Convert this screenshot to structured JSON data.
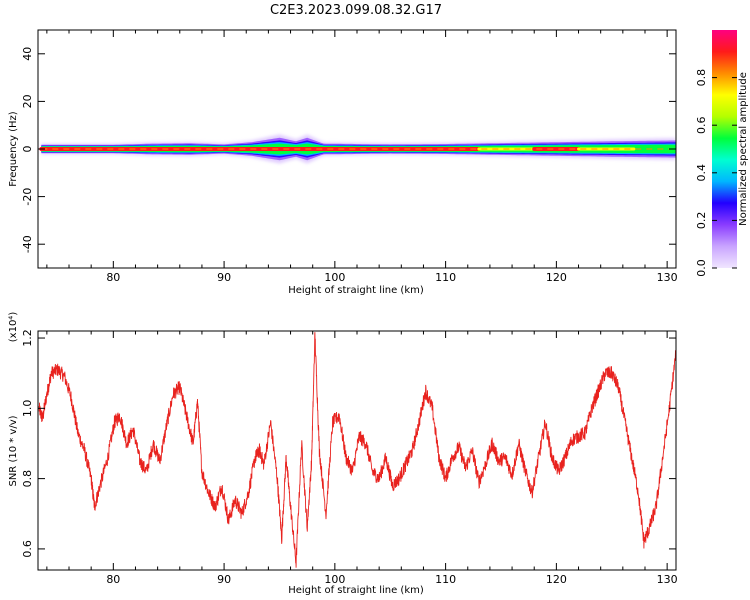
{
  "title": "C2E3.2023.099.08.32.G17",
  "colors": {
    "snr_line": "#e8221e",
    "axis": "#000000",
    "colormap": [
      "#f0e6ff",
      "#c9a4ff",
      "#8a3cff",
      "#2200ff",
      "#00b7ff",
      "#00ffd0",
      "#00ff3c",
      "#b4ff00",
      "#ffff00",
      "#ff8c00",
      "#ff1a1a",
      "#ff0080"
    ]
  },
  "chart_data": [
    {
      "type": "heatmap",
      "xlabel": "Height of straight line (km)",
      "ylabel": "Frequency (Hz)",
      "xlim": [
        73.2,
        130.8
      ],
      "ylim": [
        -50,
        50
      ],
      "xticks": [
        80,
        90,
        100,
        110,
        120,
        130
      ],
      "yticks": [
        -40,
        -20,
        0,
        20,
        40
      ],
      "ytick_labels": [
        "-40",
        "-20",
        "0",
        "20",
        "40"
      ],
      "colorbar": {
        "label": "Normalized spectral amplitude",
        "range": [
          0,
          1
        ],
        "ticks": [
          0.0,
          0.2,
          0.4,
          0.6,
          0.8
        ],
        "tick_labels": [
          "0.0",
          "0.2",
          "0.4",
          "0.6",
          "0.8"
        ]
      },
      "band_center_hz": 0,
      "band_halfwidth_hz": [
        [
          73.5,
          1.6
        ],
        [
          80,
          1.6
        ],
        [
          83.5,
          2.2
        ],
        [
          87,
          2.4
        ],
        [
          90,
          1.8
        ],
        [
          92.5,
          3.0
        ],
        [
          95,
          5.5
        ],
        [
          96.5,
          3.5
        ],
        [
          97.5,
          5.5
        ],
        [
          99,
          2.2
        ],
        [
          105,
          1.8
        ],
        [
          110,
          2.0
        ],
        [
          115,
          2.5
        ],
        [
          120,
          3.0
        ],
        [
          125,
          3.5
        ],
        [
          130.8,
          4.0
        ]
      ],
      "ridge_peaks_km": [
        73.5,
        80,
        86,
        89,
        93,
        96,
        99,
        103,
        108,
        113,
        118,
        122,
        127
      ]
    },
    {
      "type": "line",
      "xlabel": "Height of straight line (km)",
      "ylabel": "SNR (10 * v/v)",
      "y_multiplier": "(x10⁴)",
      "xlim": [
        73.2,
        130.8
      ],
      "ylim": [
        0.54,
        1.22
      ],
      "xticks": [
        80,
        90,
        100,
        110,
        120,
        130
      ],
      "yticks": [
        0.6,
        0.8,
        1.0,
        1.2
      ],
      "ytick_labels": [
        "0.6",
        "0.8",
        "1.0",
        "1.2"
      ],
      "series": [
        {
          "values_x": [
            73.3,
            73.6,
            74.0,
            74.4,
            75.0,
            75.6,
            76.2,
            76.8,
            77.4,
            78.0,
            78.3,
            78.8,
            79.5,
            80.1,
            80.6,
            81.2,
            81.8,
            82.4,
            83.0,
            83.6,
            84.2,
            84.8,
            85.4,
            86.0,
            86.6,
            87.2,
            87.6,
            88.0,
            88.6,
            89.2,
            89.8,
            90.4,
            91.0,
            91.6,
            92.2,
            92.8,
            93.2,
            93.6,
            94.2,
            94.8,
            95.2,
            95.6,
            96.0,
            96.5,
            97.0,
            97.5,
            97.9,
            98.2,
            98.6,
            99.2,
            99.8,
            100.4,
            101.0,
            101.6,
            102.2,
            102.8,
            103.4,
            104.0,
            104.6,
            105.2,
            105.8,
            106.4,
            107.0,
            107.6,
            108.2,
            108.8,
            109.4,
            110.0,
            110.6,
            111.2,
            111.8,
            112.4,
            113.0,
            113.6,
            114.2,
            114.8,
            115.4,
            116.0,
            116.6,
            117.2,
            117.8,
            118.4,
            119.0,
            119.6,
            120.2,
            120.8,
            121.4,
            122.0,
            122.6,
            123.2,
            123.8,
            124.4,
            125.0,
            125.6,
            126.2,
            126.8,
            127.4,
            127.9,
            128.4,
            129.0,
            129.6,
            130.2,
            130.8
          ],
          "values": [
            1.0,
            0.97,
            1.04,
            1.1,
            1.11,
            1.09,
            1.03,
            0.93,
            0.88,
            0.8,
            0.72,
            0.78,
            0.86,
            0.96,
            0.98,
            0.9,
            0.94,
            0.85,
            0.82,
            0.9,
            0.85,
            0.95,
            1.04,
            1.06,
            0.98,
            0.9,
            1.02,
            0.82,
            0.76,
            0.72,
            0.78,
            0.68,
            0.74,
            0.7,
            0.76,
            0.86,
            0.88,
            0.84,
            0.96,
            0.8,
            0.63,
            0.86,
            0.72,
            0.56,
            0.9,
            0.66,
            0.85,
            1.21,
            0.88,
            0.7,
            0.96,
            0.98,
            0.86,
            0.82,
            0.92,
            0.9,
            0.82,
            0.8,
            0.86,
            0.78,
            0.8,
            0.84,
            0.88,
            0.96,
            1.05,
            1.0,
            0.86,
            0.8,
            0.86,
            0.89,
            0.83,
            0.88,
            0.79,
            0.84,
            0.9,
            0.85,
            0.86,
            0.81,
            0.9,
            0.82,
            0.76,
            0.86,
            0.96,
            0.86,
            0.82,
            0.86,
            0.91,
            0.92,
            0.93,
            1.0,
            1.05,
            1.1,
            1.1,
            1.06,
            0.96,
            0.86,
            0.76,
            0.62,
            0.66,
            0.72,
            0.86,
            1.0,
            1.16
          ]
        }
      ]
    }
  ]
}
